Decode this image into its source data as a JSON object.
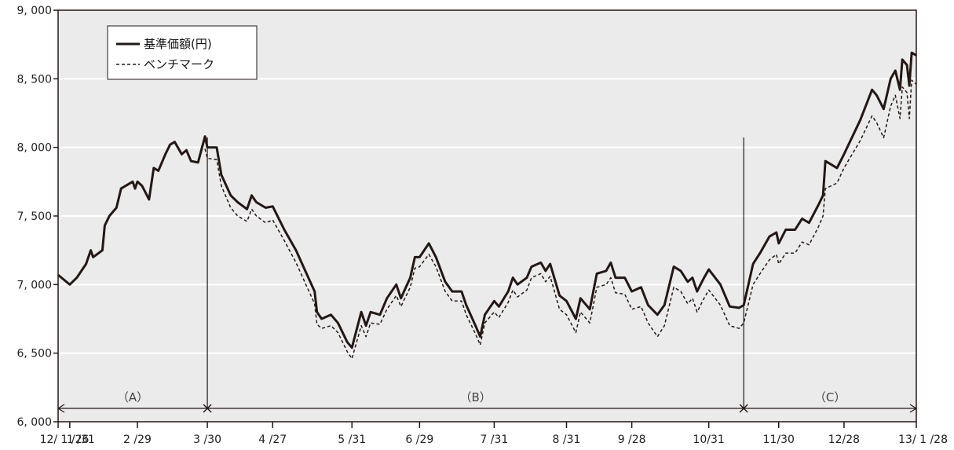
{
  "chart_data": {
    "type": "line",
    "title": "",
    "xlabel": "",
    "ylabel": "",
    "ylim": [
      6000,
      9000
    ],
    "yticks": [
      6000,
      6500,
      7000,
      7500,
      8000,
      8500,
      9000
    ],
    "ytick_labels": [
      "6, 000",
      "6, 500",
      "7, 000",
      "7, 500",
      "8, 000",
      "8, 500",
      "9, 000"
    ],
    "xlim": [
      "2012-01-26",
      "2013-01-28"
    ],
    "xticks": [
      {
        "date": "2012-01-26",
        "label": "12/ 1 /26"
      },
      {
        "date": "2012-01-31",
        "label": "1 /31"
      },
      {
        "date": "2012-02-29",
        "label": "2 /29"
      },
      {
        "date": "2012-03-30",
        "label": "3 /30"
      },
      {
        "date": "2012-04-27",
        "label": "4 /27"
      },
      {
        "date": "2012-05-31",
        "label": "5 /31"
      },
      {
        "date": "2012-06-29",
        "label": "6 /29"
      },
      {
        "date": "2012-07-31",
        "label": "7 /31"
      },
      {
        "date": "2012-08-31",
        "label": "8 /31"
      },
      {
        "date": "2012-09-28",
        "label": "9 /28"
      },
      {
        "date": "2012-10-31",
        "label": "10/31"
      },
      {
        "date": "2012-11-30",
        "label": "11/30"
      },
      {
        "date": "2012-12-28",
        "label": "12/28"
      },
      {
        "date": "2013-01-28",
        "label": "13/ 1 /28"
      }
    ],
    "grid": true,
    "legend_position": "top-left",
    "periods": [
      {
        "label": "（A）",
        "start": "2012-01-26",
        "end": "2012-03-30"
      },
      {
        "label": "（B）",
        "start": "2012-03-30",
        "end": "2012-11-15"
      },
      {
        "label": "（C）",
        "start": "2012-11-15",
        "end": "2013-01-28"
      }
    ],
    "series": [
      {
        "name": "基準価額(円)",
        "style": "solid",
        "color": "#231815",
        "points": [
          [
            "2012-01-26",
            7070
          ],
          [
            "2012-01-31",
            7000
          ],
          [
            "2012-02-03",
            7050
          ],
          [
            "2012-02-07",
            7150
          ],
          [
            "2012-02-09",
            7250
          ],
          [
            "2012-02-10",
            7200
          ],
          [
            "2012-02-14",
            7250
          ],
          [
            "2012-02-15",
            7430
          ],
          [
            "2012-02-17",
            7500
          ],
          [
            "2012-02-20",
            7560
          ],
          [
            "2012-02-22",
            7700
          ],
          [
            "2012-02-24",
            7720
          ],
          [
            "2012-02-27",
            7750
          ],
          [
            "2012-02-28",
            7700
          ],
          [
            "2012-02-29",
            7750
          ],
          [
            "2012-03-02",
            7720
          ],
          [
            "2012-03-05",
            7620
          ],
          [
            "2012-03-07",
            7850
          ],
          [
            "2012-03-09",
            7830
          ],
          [
            "2012-03-12",
            7950
          ],
          [
            "2012-03-14",
            8020
          ],
          [
            "2012-03-16",
            8040
          ],
          [
            "2012-03-19",
            7950
          ],
          [
            "2012-03-21",
            7980
          ],
          [
            "2012-03-23",
            7900
          ],
          [
            "2012-03-26",
            7890
          ],
          [
            "2012-03-29",
            8080
          ],
          [
            "2012-03-30",
            8000
          ],
          [
            "2012-04-03",
            8000
          ],
          [
            "2012-04-05",
            7800
          ],
          [
            "2012-04-09",
            7650
          ],
          [
            "2012-04-12",
            7600
          ],
          [
            "2012-04-16",
            7550
          ],
          [
            "2012-04-18",
            7650
          ],
          [
            "2012-04-20",
            7600
          ],
          [
            "2012-04-24",
            7560
          ],
          [
            "2012-04-27",
            7570
          ],
          [
            "2012-05-02",
            7400
          ],
          [
            "2012-05-07",
            7250
          ],
          [
            "2012-05-11",
            7100
          ],
          [
            "2012-05-15",
            6950
          ],
          [
            "2012-05-16",
            6800
          ],
          [
            "2012-05-18",
            6750
          ],
          [
            "2012-05-22",
            6780
          ],
          [
            "2012-05-25",
            6720
          ],
          [
            "2012-05-29",
            6580
          ],
          [
            "2012-05-31",
            6540
          ],
          [
            "2012-06-04",
            6800
          ],
          [
            "2012-06-06",
            6700
          ],
          [
            "2012-06-08",
            6800
          ],
          [
            "2012-06-12",
            6780
          ],
          [
            "2012-06-15",
            6900
          ],
          [
            "2012-06-19",
            7000
          ],
          [
            "2012-06-21",
            6900
          ],
          [
            "2012-06-25",
            7050
          ],
          [
            "2012-06-27",
            7200
          ],
          [
            "2012-06-29",
            7200
          ],
          [
            "2012-07-03",
            7300
          ],
          [
            "2012-07-06",
            7200
          ],
          [
            "2012-07-10",
            7020
          ],
          [
            "2012-07-13",
            6950
          ],
          [
            "2012-07-17",
            6950
          ],
          [
            "2012-07-19",
            6850
          ],
          [
            "2012-07-23",
            6700
          ],
          [
            "2012-07-25",
            6620
          ],
          [
            "2012-07-27",
            6780
          ],
          [
            "2012-07-31",
            6880
          ],
          [
            "2012-08-02",
            6840
          ],
          [
            "2012-08-06",
            6950
          ],
          [
            "2012-08-08",
            7050
          ],
          [
            "2012-08-10",
            7000
          ],
          [
            "2012-08-14",
            7050
          ],
          [
            "2012-08-16",
            7130
          ],
          [
            "2012-08-20",
            7160
          ],
          [
            "2012-08-22",
            7100
          ],
          [
            "2012-08-24",
            7150
          ],
          [
            "2012-08-28",
            6920
          ],
          [
            "2012-08-31",
            6880
          ],
          [
            "2012-09-04",
            6750
          ],
          [
            "2012-09-06",
            6900
          ],
          [
            "2012-09-10",
            6820
          ],
          [
            "2012-09-13",
            7080
          ],
          [
            "2012-09-17",
            7100
          ],
          [
            "2012-09-19",
            7160
          ],
          [
            "2012-09-21",
            7050
          ],
          [
            "2012-09-25",
            7050
          ],
          [
            "2012-09-28",
            6950
          ],
          [
            "2012-10-02",
            6980
          ],
          [
            "2012-10-05",
            6850
          ],
          [
            "2012-10-09",
            6780
          ],
          [
            "2012-10-12",
            6850
          ],
          [
            "2012-10-16",
            7130
          ],
          [
            "2012-10-19",
            7100
          ],
          [
            "2012-10-22",
            7020
          ],
          [
            "2012-10-24",
            7050
          ],
          [
            "2012-10-26",
            6950
          ],
          [
            "2012-10-29",
            7050
          ],
          [
            "2012-10-31",
            7110
          ],
          [
            "2012-11-05",
            7000
          ],
          [
            "2012-11-09",
            6840
          ],
          [
            "2012-11-13",
            6830
          ],
          [
            "2012-11-15",
            6850
          ],
          [
            "2012-11-19",
            7150
          ],
          [
            "2012-11-22",
            7230
          ],
          [
            "2012-11-26",
            7350
          ],
          [
            "2012-11-29",
            7380
          ],
          [
            "2012-11-30",
            7300
          ],
          [
            "2012-12-03",
            7400
          ],
          [
            "2012-12-07",
            7400
          ],
          [
            "2012-12-10",
            7480
          ],
          [
            "2012-12-13",
            7450
          ],
          [
            "2012-12-17",
            7580
          ],
          [
            "2012-12-19",
            7650
          ],
          [
            "2012-12-20",
            7900
          ],
          [
            "2012-12-25",
            7850
          ],
          [
            "2012-12-28",
            7950
          ],
          [
            "2013-01-04",
            8200
          ],
          [
            "2013-01-09",
            8420
          ],
          [
            "2013-01-11",
            8380
          ],
          [
            "2013-01-14",
            8280
          ],
          [
            "2013-01-17",
            8500
          ],
          [
            "2013-01-19",
            8560
          ],
          [
            "2013-01-21",
            8420
          ],
          [
            "2013-01-22",
            8640
          ],
          [
            "2013-01-24",
            8600
          ],
          [
            "2013-01-25",
            8450
          ],
          [
            "2013-01-26",
            8690
          ],
          [
            "2013-01-28",
            8670
          ]
        ]
      },
      {
        "name": "ベンチマーク",
        "style": "dashed",
        "color": "#231815",
        "points": [
          [
            "2012-03-29",
            7990
          ],
          [
            "2012-03-30",
            7920
          ],
          [
            "2012-04-03",
            7910
          ],
          [
            "2012-04-05",
            7720
          ],
          [
            "2012-04-09",
            7560
          ],
          [
            "2012-04-12",
            7500
          ],
          [
            "2012-04-16",
            7460
          ],
          [
            "2012-04-18",
            7550
          ],
          [
            "2012-04-20",
            7500
          ],
          [
            "2012-04-24",
            7450
          ],
          [
            "2012-04-27",
            7470
          ],
          [
            "2012-05-02",
            7320
          ],
          [
            "2012-05-07",
            7160
          ],
          [
            "2012-05-11",
            7010
          ],
          [
            "2012-05-15",
            6860
          ],
          [
            "2012-05-16",
            6710
          ],
          [
            "2012-05-18",
            6680
          ],
          [
            "2012-05-22",
            6700
          ],
          [
            "2012-05-25",
            6650
          ],
          [
            "2012-05-29",
            6510
          ],
          [
            "2012-05-31",
            6460
          ],
          [
            "2012-06-04",
            6700
          ],
          [
            "2012-06-06",
            6620
          ],
          [
            "2012-06-08",
            6720
          ],
          [
            "2012-06-12",
            6710
          ],
          [
            "2012-06-15",
            6820
          ],
          [
            "2012-06-19",
            6920
          ],
          [
            "2012-06-21",
            6840
          ],
          [
            "2012-06-25",
            6980
          ],
          [
            "2012-06-27",
            7120
          ],
          [
            "2012-06-29",
            7130
          ],
          [
            "2012-07-03",
            7220
          ],
          [
            "2012-07-06",
            7130
          ],
          [
            "2012-07-10",
            6950
          ],
          [
            "2012-07-13",
            6880
          ],
          [
            "2012-07-17",
            6880
          ],
          [
            "2012-07-19",
            6780
          ],
          [
            "2012-07-23",
            6640
          ],
          [
            "2012-07-25",
            6560
          ],
          [
            "2012-07-27",
            6720
          ],
          [
            "2012-07-31",
            6800
          ],
          [
            "2012-08-02",
            6760
          ],
          [
            "2012-08-06",
            6870
          ],
          [
            "2012-08-08",
            6960
          ],
          [
            "2012-08-10",
            6910
          ],
          [
            "2012-08-14",
            6960
          ],
          [
            "2012-08-16",
            7050
          ],
          [
            "2012-08-20",
            7080
          ],
          [
            "2012-08-22",
            7020
          ],
          [
            "2012-08-24",
            7060
          ],
          [
            "2012-08-28",
            6820
          ],
          [
            "2012-08-31",
            6780
          ],
          [
            "2012-09-04",
            6650
          ],
          [
            "2012-09-06",
            6800
          ],
          [
            "2012-09-10",
            6720
          ],
          [
            "2012-09-13",
            6980
          ],
          [
            "2012-09-17",
            7000
          ],
          [
            "2012-09-19",
            7050
          ],
          [
            "2012-09-21",
            6940
          ],
          [
            "2012-09-25",
            6930
          ],
          [
            "2012-09-28",
            6820
          ],
          [
            "2012-10-02",
            6840
          ],
          [
            "2012-10-05",
            6720
          ],
          [
            "2012-10-09",
            6620
          ],
          [
            "2012-10-12",
            6700
          ],
          [
            "2012-10-16",
            6980
          ],
          [
            "2012-10-19",
            6950
          ],
          [
            "2012-10-22",
            6860
          ],
          [
            "2012-10-24",
            6900
          ],
          [
            "2012-10-26",
            6800
          ],
          [
            "2012-10-29",
            6900
          ],
          [
            "2012-10-31",
            6960
          ],
          [
            "2012-11-05",
            6850
          ],
          [
            "2012-11-09",
            6700
          ],
          [
            "2012-11-13",
            6680
          ],
          [
            "2012-11-15",
            6720
          ],
          [
            "2012-11-19",
            7000
          ],
          [
            "2012-11-22",
            7080
          ],
          [
            "2012-11-26",
            7180
          ],
          [
            "2012-11-29",
            7220
          ],
          [
            "2012-11-30",
            7150
          ],
          [
            "2012-12-03",
            7230
          ],
          [
            "2012-12-07",
            7230
          ],
          [
            "2012-12-10",
            7310
          ],
          [
            "2012-12-13",
            7290
          ],
          [
            "2012-12-17",
            7420
          ],
          [
            "2012-12-19",
            7500
          ],
          [
            "2012-12-20",
            7700
          ],
          [
            "2012-12-25",
            7740
          ],
          [
            "2012-12-28",
            7850
          ],
          [
            "2013-01-04",
            8050
          ],
          [
            "2013-01-09",
            8230
          ],
          [
            "2013-01-11",
            8180
          ],
          [
            "2013-01-14",
            8070
          ],
          [
            "2013-01-17",
            8300
          ],
          [
            "2013-01-19",
            8380
          ],
          [
            "2013-01-21",
            8210
          ],
          [
            "2013-01-22",
            8440
          ],
          [
            "2013-01-24",
            8400
          ],
          [
            "2013-01-25",
            8210
          ],
          [
            "2013-01-26",
            8490
          ],
          [
            "2013-01-28",
            8460
          ]
        ]
      }
    ]
  },
  "colors": {
    "plot_background": "#ebebeb",
    "gridline": "#ffffff",
    "axis": "#231815",
    "line": "#231815"
  }
}
